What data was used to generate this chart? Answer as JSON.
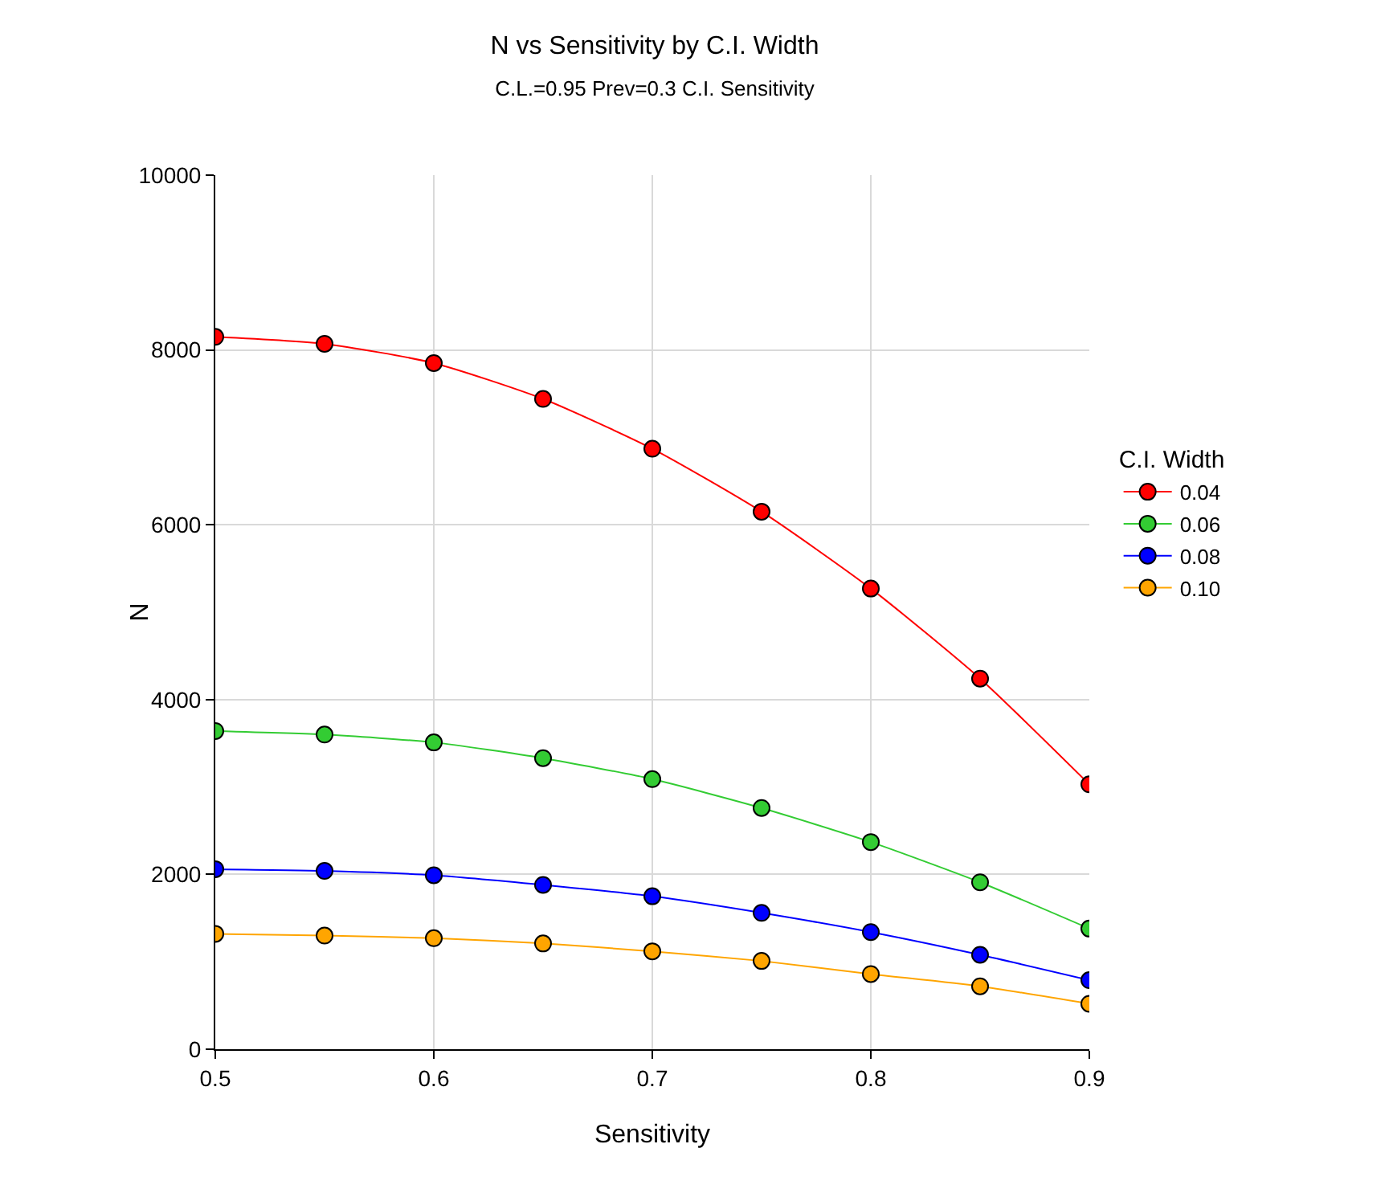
{
  "chart_data": {
    "type": "line",
    "title": "N vs Sensitivity by C.I. Width",
    "subtitle": "C.L.=0.95 Prev=0.3 C.I. Sensitivity",
    "xlabel": "Sensitivity",
    "ylabel": "N",
    "legend_title": "C.I. Width",
    "x": [
      0.5,
      0.55,
      0.6,
      0.65,
      0.7,
      0.75,
      0.8,
      0.85,
      0.9
    ],
    "series": [
      {
        "name": "0.04",
        "color": "#ff0000",
        "values": [
          8150,
          8070,
          7850,
          7440,
          6870,
          6150,
          5270,
          4240,
          3030
        ]
      },
      {
        "name": "0.06",
        "color": "#33cc33",
        "values": [
          3640,
          3600,
          3510,
          3330,
          3090,
          2760,
          2370,
          1910,
          1380
        ]
      },
      {
        "name": "0.08",
        "color": "#0000ff",
        "values": [
          2060,
          2040,
          1990,
          1880,
          1750,
          1560,
          1340,
          1080,
          790
        ]
      },
      {
        "name": "0.10",
        "color": "#ffa500",
        "values": [
          1320,
          1300,
          1270,
          1210,
          1120,
          1010,
          860,
          720,
          520
        ]
      }
    ],
    "xlim": [
      0.5,
      0.9
    ],
    "xticks": [
      0.5,
      0.6,
      0.7,
      0.8,
      0.9
    ],
    "ylim": [
      0,
      10000
    ],
    "yticks": [
      0,
      2000,
      4000,
      6000,
      8000,
      10000
    ],
    "grid": true,
    "legend": "right",
    "marker": "circle",
    "line_style": "solid"
  }
}
